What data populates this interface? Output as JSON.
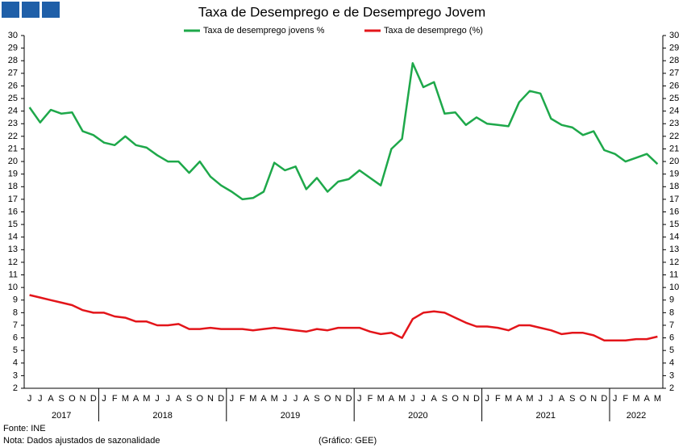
{
  "chart_data": {
    "type": "line",
    "title": "Taxa de Desemprego e de Desemprego Jovem",
    "categories": [
      "J",
      "J",
      "A",
      "S",
      "O",
      "N",
      "D",
      "J",
      "F",
      "M",
      "A",
      "M",
      "J",
      "J",
      "A",
      "S",
      "O",
      "N",
      "D",
      "J",
      "F",
      "M",
      "A",
      "M",
      "J",
      "J",
      "A",
      "S",
      "O",
      "N",
      "D",
      "J",
      "F",
      "M",
      "A",
      "M",
      "J",
      "J",
      "A",
      "S",
      "O",
      "N",
      "D",
      "J",
      "F",
      "M",
      "A",
      "M",
      "J",
      "J",
      "A",
      "S",
      "O",
      "N",
      "D",
      "J",
      "F",
      "M",
      "A",
      "M"
    ],
    "year_labels": [
      "2017",
      "2018",
      "2019",
      "2020",
      "2021",
      "2022"
    ],
    "series": [
      {
        "name": "Taxa de desemprego jovens %",
        "color": "#1ea84a",
        "values": [
          24.3,
          23.1,
          24.1,
          23.8,
          23.9,
          22.4,
          22.1,
          21.5,
          21.3,
          22.0,
          21.3,
          21.1,
          20.5,
          20.0,
          20.0,
          19.1,
          20.0,
          18.8,
          18.1,
          17.6,
          17.0,
          17.1,
          17.6,
          19.9,
          19.3,
          19.6,
          17.8,
          18.7,
          17.6,
          18.4,
          18.6,
          19.3,
          18.7,
          18.1,
          21.0,
          21.8,
          27.8,
          25.9,
          26.3,
          23.8,
          23.9,
          22.9,
          23.5,
          23.0,
          22.9,
          22.8,
          24.7,
          25.6,
          25.4,
          23.4,
          22.9,
          22.7,
          22.1,
          22.4,
          20.9,
          20.6,
          20.0,
          20.3,
          20.6,
          19.8
        ]
      },
      {
        "name": "Taxa de desemprego (%)",
        "color": "#e3151a",
        "values": [
          9.4,
          9.2,
          9.0,
          8.8,
          8.6,
          8.2,
          8.0,
          8.0,
          7.7,
          7.6,
          7.3,
          7.3,
          7.0,
          7.0,
          7.1,
          6.7,
          6.7,
          6.8,
          6.7,
          6.7,
          6.7,
          6.6,
          6.7,
          6.8,
          6.7,
          6.6,
          6.5,
          6.7,
          6.6,
          6.8,
          6.8,
          6.8,
          6.5,
          6.3,
          6.4,
          6.0,
          7.5,
          8.0,
          8.1,
          8.0,
          7.6,
          7.2,
          6.9,
          6.9,
          6.8,
          6.6,
          7.0,
          7.0,
          6.8,
          6.6,
          6.3,
          6.4,
          6.4,
          6.2,
          5.8,
          5.8,
          5.8,
          5.9,
          5.9,
          6.1
        ]
      }
    ],
    "ylim": [
      2,
      30
    ],
    "yticks": [
      2,
      3,
      4,
      5,
      6,
      7,
      8,
      9,
      10,
      11,
      12,
      13,
      14,
      15,
      16,
      17,
      18,
      19,
      20,
      21,
      22,
      23,
      24,
      25,
      26,
      27,
      28,
      29,
      30
    ],
    "grid": false
  },
  "footer": {
    "source": "Fonte: INE",
    "note": "Nota: Dados ajustados de sazonalidade",
    "credit": "(Gráfico: GEE)"
  }
}
